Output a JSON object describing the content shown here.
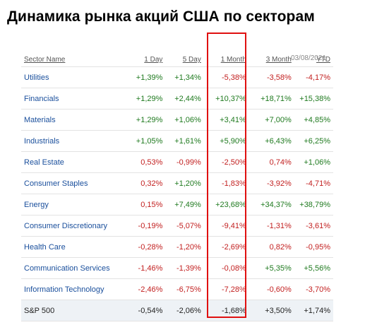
{
  "title": "Динамика рынка акций США по секторам",
  "header": {
    "sector": "Sector Name",
    "d1": "1 Day",
    "d5": "5 Day",
    "m1": "1 Month",
    "m3": "3 Month",
    "ytd": "YTD",
    "date": "03/08/2021"
  },
  "rows": [
    {
      "name": "Utilities",
      "d1": "+1,39%",
      "d5": "+1,34%",
      "m1": "-5,38%",
      "m3": "-3,58%",
      "ytd": "-4,17%"
    },
    {
      "name": "Financials",
      "d1": "+1,29%",
      "d5": "+2,44%",
      "m1": "+10,37%",
      "m3": "+18,71%",
      "ytd": "+15,38%"
    },
    {
      "name": "Materials",
      "d1": "+1,29%",
      "d5": "+1,06%",
      "m1": "+3,41%",
      "m3": "+7,00%",
      "ytd": "+4,85%"
    },
    {
      "name": "Industrials",
      "d1": "+1,05%",
      "d5": "+1,61%",
      "m1": "+5,90%",
      "m3": "+6,43%",
      "ytd": "+6,25%"
    },
    {
      "name": "Real Estate",
      "d1": "0,53%",
      "d5": "-0,99%",
      "m1": "-2,50%",
      "m3": "0,74%",
      "ytd": "+1,06%"
    },
    {
      "name": "Consumer Staples",
      "d1": "0,32%",
      "d5": "+1,20%",
      "m1": "-1,83%",
      "m3": "-3,92%",
      "ytd": "-4,71%"
    },
    {
      "name": "Energy",
      "d1": "0,15%",
      "d5": "+7,49%",
      "m1": "+23,68%",
      "m3": "+34,37%",
      "ytd": "+38,79%"
    },
    {
      "name": "Consumer Discretionary",
      "d1": "-0,19%",
      "d5": "-5,07%",
      "m1": "-9,41%",
      "m3": "-1,31%",
      "ytd": "-3,61%"
    },
    {
      "name": "Health Care",
      "d1": "-0,28%",
      "d5": "-1,20%",
      "m1": "-2,69%",
      "m3": "0,82%",
      "ytd": "-0,95%"
    },
    {
      "name": "Communication Services",
      "d1": "-1,46%",
      "d5": "-1,39%",
      "m1": "-0,08%",
      "m3": "+5,35%",
      "ytd": "+5,56%"
    },
    {
      "name": "Information Technology",
      "d1": "-2,46%",
      "d5": "-6,75%",
      "m1": "-7,28%",
      "m3": "-0,60%",
      "ytd": "-3,70%"
    }
  ],
  "total": {
    "name": "S&P 500",
    "d1": "-0,54%",
    "d5": "-2,06%",
    "m1": "-1,68%",
    "m3": "+3,50%",
    "ytd": "+1,74%"
  },
  "colors": {
    "positive": "#1f7a1f",
    "negative": "#c21f1f",
    "highlight": "#e01010"
  }
}
